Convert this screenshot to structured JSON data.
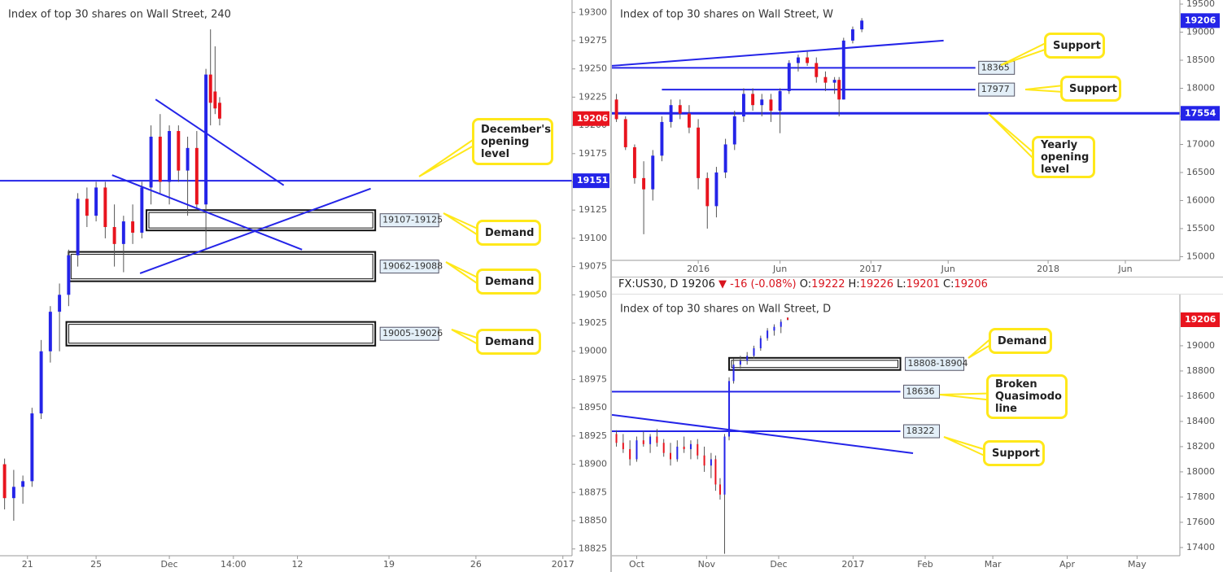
{
  "chart_data": [
    {
      "type": "candlestick",
      "title": "Index of top 30 shares on Wall Street, 240",
      "xlim": [
        0,
        125
      ],
      "ylim": [
        18819,
        19311
      ],
      "xticks": [
        {
          "value": 6,
          "label": "21"
        },
        {
          "value": 21,
          "label": "25"
        },
        {
          "value": 37,
          "label": "Dec"
        },
        {
          "value": 51,
          "label": "14:00"
        },
        {
          "value": 65,
          "label": "12"
        },
        {
          "value": 85,
          "label": "19"
        },
        {
          "value": 104,
          "label": "26"
        },
        {
          "value": 123,
          "label": "2017"
        }
      ],
      "yticks": [
        18825,
        18850,
        18875,
        18900,
        18925,
        18950,
        18975,
        19000,
        19025,
        19050,
        19075,
        19100,
        19125,
        19150,
        19175,
        19200,
        19225,
        19250,
        19275,
        19300
      ],
      "grid": false,
      "up_color": "#2424e8",
      "down_color": "#e8141e",
      "last": 19206,
      "last_color": "#e8141e",
      "candles": {
        "x": [
          1,
          3,
          5,
          7,
          9,
          11,
          13,
          15,
          17,
          19,
          21,
          23,
          25,
          27,
          29,
          31,
          33,
          35,
          37,
          39,
          41,
          43,
          45,
          46,
          47,
          48
        ],
        "open": [
          18900,
          18870,
          18880,
          18885,
          18945,
          19000,
          19035,
          19050,
          19085,
          19135,
          19120,
          19145,
          19110,
          19095,
          19115,
          19105,
          19145,
          19190,
          19150,
          19195,
          19160,
          19180,
          19130,
          19245,
          19230,
          19220
        ],
        "high": [
          18905,
          18895,
          18890,
          18950,
          19010,
          19040,
          19060,
          19090,
          19140,
          19145,
          19150,
          19150,
          19130,
          19120,
          19130,
          19150,
          19200,
          19210,
          19200,
          19200,
          19190,
          19195,
          19250,
          19285,
          19270,
          19225
        ],
        "low": [
          18860,
          18850,
          18865,
          18880,
          18940,
          18990,
          19000,
          19040,
          19075,
          19110,
          19115,
          19100,
          19075,
          19070,
          19095,
          19100,
          19130,
          19140,
          19130,
          19150,
          19120,
          19125,
          19090,
          19200,
          19210,
          19200
        ],
        "close": [
          18870,
          18880,
          18885,
          18945,
          19000,
          19035,
          19050,
          19085,
          19135,
          19120,
          19145,
          19110,
          19095,
          19115,
          19105,
          19145,
          19190,
          19150,
          19195,
          19160,
          19180,
          19130,
          19245,
          19220,
          19215,
          19206
        ]
      },
      "levels": [
        {
          "value": 19151,
          "line_width": 2,
          "tag": "axis"
        }
      ],
      "zones": [
        {
          "low": 19107,
          "high": 19125,
          "x_from": 32,
          "x_to": 82,
          "label": "19107-19125"
        },
        {
          "low": 19062,
          "high": 19088,
          "x_from": 15,
          "x_to": 82,
          "label": "19062-19088"
        },
        {
          "low": 19005,
          "high": 19026,
          "x_from": 14.5,
          "x_to": 82,
          "label": "19005-19026"
        }
      ],
      "trendlines": [
        {
          "x": [
            34,
            62
          ],
          "y": [
            19223,
            19147
          ]
        },
        {
          "x": [
            24.5,
            66
          ],
          "y": [
            19156,
            19090
          ]
        },
        {
          "x": [
            30.6,
            81
          ],
          "y": [
            19069,
            19144
          ]
        }
      ],
      "callouts": [
        "December's opening level",
        "Demand",
        "Demand",
        "Demand"
      ]
    },
    {
      "type": "candlestick",
      "title": "Index of top 30 shares on Wall Street, W",
      "xlim": [
        0,
        125
      ],
      "ylim": [
        14934,
        19573
      ],
      "xticks": [
        {
          "value": 19,
          "label": "2016"
        },
        {
          "value": 37,
          "label": "Jun"
        },
        {
          "value": 57,
          "label": "2017"
        },
        {
          "value": 74,
          "label": "Jun"
        },
        {
          "value": 96,
          "label": "2018"
        },
        {
          "value": 113,
          "label": "Jun"
        }
      ],
      "yticks": [
        15000,
        15500,
        16000,
        16500,
        17000,
        17500,
        18000,
        18500,
        19000,
        19500
      ],
      "grid": false,
      "up_color": "#2424e8",
      "down_color": "#e8141e",
      "last": 19206,
      "last_color": "#2424e8",
      "candles": {
        "x": [
          1,
          3,
          5,
          7,
          9,
          11,
          13,
          15,
          17,
          19,
          21,
          23,
          25,
          27,
          29,
          31,
          33,
          35,
          37,
          39,
          41,
          43,
          45,
          47,
          49,
          50,
          51,
          53,
          55
        ],
        "open": [
          17800,
          17450,
          16950,
          16400,
          16200,
          16800,
          17400,
          17700,
          17550,
          17300,
          16400,
          15900,
          16500,
          17000,
          17500,
          17900,
          17700,
          17800,
          17600,
          17950,
          18450,
          18550,
          18450,
          18200,
          18100,
          18150,
          17800,
          18850,
          19050
        ],
        "high": [
          17900,
          17500,
          17000,
          16700,
          16900,
          17500,
          17800,
          17800,
          17700,
          17450,
          16500,
          16600,
          17100,
          17600,
          18000,
          18000,
          17900,
          17900,
          18000,
          18500,
          18600,
          18650,
          18550,
          18300,
          18200,
          18200,
          18900,
          19100,
          19250
        ],
        "low": [
          17400,
          16900,
          16300,
          15400,
          16000,
          16700,
          17300,
          17450,
          17200,
          16200,
          15500,
          15700,
          16400,
          16900,
          17400,
          17600,
          17500,
          17400,
          17200,
          17900,
          18300,
          18400,
          18100,
          17950,
          17900,
          17500,
          17800,
          18800,
          19000
        ],
        "close": [
          17450,
          16950,
          16400,
          16200,
          16800,
          17400,
          17700,
          17550,
          17300,
          16400,
          15900,
          16500,
          17000,
          17500,
          17900,
          17700,
          17800,
          17600,
          17950,
          18450,
          18550,
          18450,
          18200,
          18100,
          18150,
          17800,
          18850,
          19050,
          19206
        ]
      },
      "levels": [
        {
          "value": 18365,
          "x_to": 80,
          "line_width": 2,
          "tag": "line"
        },
        {
          "value": 17977,
          "x_from": 11,
          "x_to": 80,
          "line_width": 2,
          "tag": "line"
        },
        {
          "value": 17554,
          "line_width": 3,
          "tag": "axis"
        }
      ],
      "zones": [],
      "trendlines": [
        {
          "x": [
            0,
            73
          ],
          "y": [
            18400,
            18850
          ]
        }
      ],
      "callouts": [
        "Support",
        "Support",
        "Yearly opening level"
      ]
    },
    {
      "type": "candlestick",
      "title": "Index of top 30 shares on Wall Street, D",
      "header": {
        "symbol": "FX:US30, D",
        "price": 19206,
        "change": "▼ -16 (-0.08%)",
        "ohlc": [
          {
            "label": "O:",
            "value": 19222
          },
          {
            "label": "H:",
            "value": 19226
          },
          {
            "label": "L:",
            "value": 19201
          },
          {
            "label": "C:",
            "value": 19206
          }
        ]
      },
      "xlim": [
        0,
        252
      ],
      "ylim": [
        17335,
        19406
      ],
      "xticks": [
        {
          "value": 11,
          "label": "Oct"
        },
        {
          "value": 42,
          "label": "Nov"
        },
        {
          "value": 74,
          "label": "Dec"
        },
        {
          "value": 107,
          "label": "2017"
        },
        {
          "value": 139,
          "label": "Feb"
        },
        {
          "value": 169,
          "label": "Mar"
        },
        {
          "value": 202,
          "label": "Apr"
        },
        {
          "value": 233,
          "label": "May"
        }
      ],
      "yticks": [
        17400,
        17600,
        17800,
        18000,
        18200,
        18400,
        18600,
        18800,
        19000
      ],
      "grid": false,
      "up_color": "#2424e8",
      "down_color": "#e8141e",
      "last": 19206,
      "last_color": "#e8141e",
      "candles": {
        "x": [
          2,
          5,
          8,
          11,
          14,
          17,
          20,
          23,
          26,
          29,
          32,
          35,
          38,
          41,
          44,
          46,
          48,
          50,
          52,
          54,
          57,
          60,
          63,
          66,
          69,
          72,
          75,
          78
        ],
        "open": [
          18300,
          18230,
          18180,
          18100,
          18250,
          18220,
          18280,
          18230,
          18150,
          18100,
          18200,
          18180,
          18220,
          18130,
          18050,
          18100,
          17900,
          17820,
          18280,
          18720,
          18850,
          18880,
          18920,
          18980,
          19060,
          19120,
          19150,
          19222
        ],
        "high": [
          18330,
          18300,
          18250,
          18280,
          18320,
          18300,
          18340,
          18260,
          18230,
          18250,
          18280,
          18250,
          18260,
          18200,
          18150,
          18130,
          17950,
          18300,
          18750,
          18900,
          18920,
          18950,
          19000,
          19080,
          19140,
          19170,
          19210,
          19226
        ],
        "low": [
          18200,
          18150,
          18050,
          18080,
          18200,
          18150,
          18200,
          18120,
          18050,
          18080,
          18150,
          18100,
          18100,
          18000,
          17950,
          17850,
          17780,
          17350,
          18250,
          18700,
          18820,
          18850,
          18900,
          18960,
          19040,
          19080,
          19100,
          19201
        ],
        "close": [
          18230,
          18180,
          18100,
          18250,
          18220,
          18280,
          18230,
          18150,
          18100,
          18200,
          18180,
          18220,
          18130,
          18050,
          18100,
          17900,
          17820,
          18280,
          18720,
          18850,
          18880,
          18920,
          18980,
          19060,
          19120,
          19150,
          19190,
          19206
        ]
      },
      "levels": [
        {
          "value": 18636,
          "x_to": 128,
          "line_width": 2,
          "tag": "line"
        },
        {
          "value": 18322,
          "x_to": 128,
          "line_width": 2,
          "tag": "line"
        }
      ],
      "zones": [
        {
          "low": 18808,
          "high": 18904,
          "x_from": 52,
          "x_to": 128,
          "label": "18808-18904"
        }
      ],
      "trendlines": [
        {
          "x": [
            0,
            133.6
          ],
          "y": [
            18452,
            18148
          ]
        }
      ],
      "callouts": [
        "Demand",
        "Broken Quasimodo line",
        "Support"
      ]
    }
  ]
}
